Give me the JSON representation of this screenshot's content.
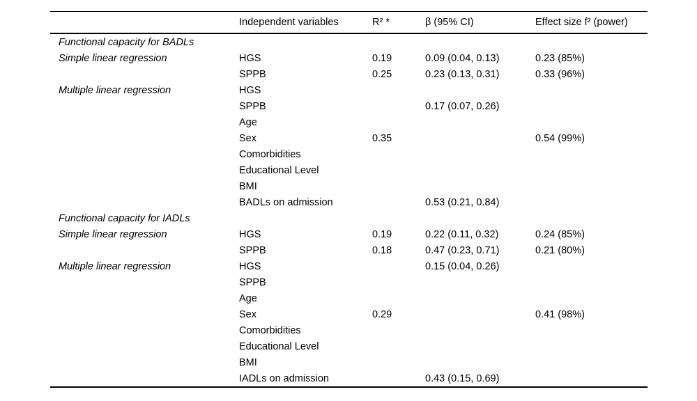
{
  "colors": {
    "background": "#ffffff",
    "text": "#000000",
    "rule": "#000000"
  },
  "table": {
    "headers": [
      "",
      "Independent variables",
      "R² *",
      "β (95% CI)",
      "Effect size f² (power)"
    ],
    "rows": [
      {
        "label": "Functional capacity for BADLs",
        "variable": "",
        "r2": "",
        "beta": "",
        "effect": ""
      },
      {
        "label": "Simple linear regression",
        "variable": "HGS",
        "r2": "0.19",
        "beta": "0.09 (0.04, 0.13)",
        "effect": "0.23 (85%)"
      },
      {
        "label": "",
        "variable": "SPPB",
        "r2": "0.25",
        "beta": "0.23 (0.13, 0.31)",
        "effect": "0.33 (96%)"
      },
      {
        "label": "Multiple linear regression",
        "variable": "HGS",
        "r2": "",
        "beta": "",
        "effect": ""
      },
      {
        "label": "",
        "variable": "SPPB",
        "r2": "",
        "beta": "0.17 (0.07, 0.26)",
        "effect": ""
      },
      {
        "label": "",
        "variable": "Age",
        "r2": "",
        "beta": "",
        "effect": ""
      },
      {
        "label": "",
        "variable": "Sex",
        "r2": "0.35",
        "beta": "",
        "effect": "0.54 (99%)"
      },
      {
        "label": "",
        "variable": "Comorbidities",
        "r2": "",
        "beta": "",
        "effect": ""
      },
      {
        "label": "",
        "variable": "Educational Level",
        "r2": "",
        "beta": "",
        "effect": ""
      },
      {
        "label": "",
        "variable": "BMI",
        "r2": "",
        "beta": "",
        "effect": ""
      },
      {
        "label": "",
        "variable": "BADLs on admission",
        "r2": "",
        "beta": "0.53 (0.21, 0.84)",
        "effect": ""
      },
      {
        "label": "Functional capacity for IADLs",
        "variable": "",
        "r2": "",
        "beta": "",
        "effect": ""
      },
      {
        "label": "Simple linear regression",
        "variable": "HGS",
        "r2": "0.19",
        "beta": "0.22 (0.11, 0.32)",
        "effect": "0.24 (85%)"
      },
      {
        "label": "",
        "variable": "SPPB",
        "r2": "0.18",
        "beta": "0.47 (0.23, 0.71)",
        "effect": "0.21 (80%)"
      },
      {
        "label": "Multiple linear regression",
        "variable": "HGS",
        "r2": "",
        "beta": "0.15 (0.04, 0.26)",
        "effect": ""
      },
      {
        "label": "",
        "variable": "SPPB",
        "r2": "",
        "beta": "",
        "effect": ""
      },
      {
        "label": "",
        "variable": "Age",
        "r2": "",
        "beta": "",
        "effect": ""
      },
      {
        "label": "",
        "variable": "Sex",
        "r2": "0.29",
        "beta": "",
        "effect": "0.41 (98%)"
      },
      {
        "label": "",
        "variable": "Comorbidities",
        "r2": "",
        "beta": "",
        "effect": ""
      },
      {
        "label": "",
        "variable": "Educational Level",
        "r2": "",
        "beta": "",
        "effect": ""
      },
      {
        "label": "",
        "variable": "BMI",
        "r2": "",
        "beta": "",
        "effect": ""
      },
      {
        "label": "",
        "variable": "IADLs on admission",
        "r2": "",
        "beta": "0.43 (0.15, 0.69)",
        "effect": ""
      }
    ]
  }
}
